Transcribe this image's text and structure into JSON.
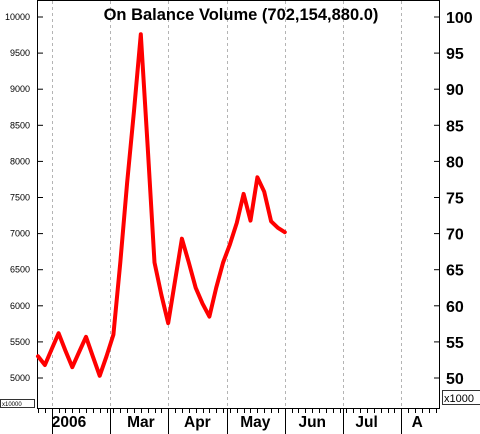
{
  "chart_data": {
    "type": "line",
    "title": "On Balance Volume (702,154,880.0)",
    "left_axis": {
      "ticks": [
        "10000",
        "9500",
        "9000",
        "8500",
        "8000",
        "7500",
        "7000",
        "6500",
        "6000",
        "5500",
        "5000"
      ],
      "unit_label": "x10000",
      "range": [
        4700,
        10200
      ]
    },
    "right_axis": {
      "ticks": [
        "100",
        "95",
        "90",
        "85",
        "80",
        "75",
        "70",
        "65",
        "60",
        "55",
        "50"
      ],
      "unit_label": "x1000",
      "range": [
        47,
        102
      ]
    },
    "x_axis": {
      "labels": [
        "2006",
        "Mar",
        "Apr",
        "May",
        "Jun",
        "Jul",
        "A"
      ],
      "label_positions": [
        2,
        13,
        21.3,
        29.5,
        38,
        46.3,
        54.5
      ],
      "gridlines": [
        2,
        10.5,
        19,
        27.5,
        36,
        44.5,
        53
      ],
      "range": [
        0,
        58.5
      ]
    },
    "series": [
      {
        "color": "#ff0000",
        "x": [
          0,
          1,
          2,
          3,
          4,
          5,
          6,
          7,
          8,
          9,
          10,
          11,
          12,
          13,
          14,
          15,
          16,
          17,
          18,
          19,
          20,
          21,
          22,
          23,
          24,
          25,
          26,
          27,
          28,
          29,
          30,
          31,
          32,
          33,
          34,
          35,
          36
        ],
        "y": [
          5300,
          5180,
          5400,
          5620,
          5380,
          5150,
          5360,
          5570,
          5300,
          5030,
          5300,
          5600,
          6600,
          7700,
          8700,
          9760,
          8200,
          6600,
          6150,
          5760,
          6350,
          6930,
          6600,
          6250,
          6030,
          5850,
          6250,
          6600,
          6850,
          7150,
          7550,
          7180,
          7780,
          7580,
          7170,
          7080,
          7020
        ]
      }
    ],
    "grid": true
  }
}
